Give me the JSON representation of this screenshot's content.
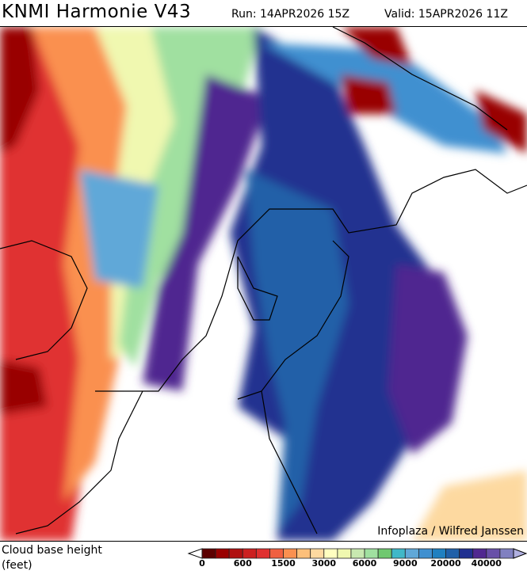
{
  "header": {
    "title": "KNMI Harmonie V43",
    "run": "Run: 14APR2026 15Z",
    "valid": "Valid: 15APR2026 11Z"
  },
  "map": {
    "credit": "Infoplaza / Wilfred Janssen",
    "field": "cloud base height"
  },
  "legend": {
    "label_line1": "Cloud base height",
    "label_line2": "(feet)",
    "colors": [
      "#5c0000",
      "#990000",
      "#b01010",
      "#cc2020",
      "#e03030",
      "#f06040",
      "#fa9050",
      "#fdbf7a",
      "#fdd9a0",
      "#ffffc0",
      "#f0f8b0",
      "#c8e8b0",
      "#a0e0a0",
      "#70c870",
      "#40b8c8",
      "#60a8d8",
      "#4090d0",
      "#2080c0",
      "#2060a8",
      "#203090",
      "#502890",
      "#6850a8",
      "#8080c0"
    ],
    "under_color": "#ffffff",
    "over_color": "#b0b0e0",
    "ticks": [
      "0",
      "600",
      "1500",
      "3000",
      "6000",
      "9000",
      "20000",
      "40000"
    ]
  }
}
